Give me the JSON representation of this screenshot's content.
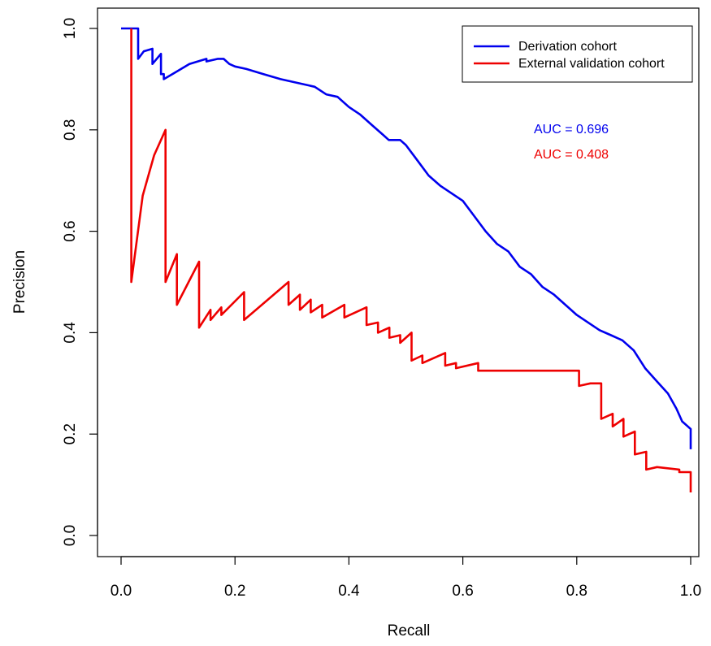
{
  "chart_data": {
    "type": "line",
    "xlabel": "Recall",
    "ylabel": "Precision",
    "xlim": [
      0,
      1
    ],
    "ylim": [
      0,
      1
    ],
    "x_ticks": [
      "0.0",
      "0.2",
      "0.4",
      "0.6",
      "0.8",
      "1.0"
    ],
    "y_ticks": [
      "0.0",
      "0.2",
      "0.4",
      "0.6",
      "0.8",
      "1.0"
    ],
    "grid": false,
    "legend": {
      "placement": "top-right",
      "entries": [
        "Derivation cohort",
        "External validation cohort"
      ]
    },
    "annotations": [
      {
        "text": "AUC = 0.696",
        "color": "#0000ee",
        "x": 0.73,
        "y": 0.8
      },
      {
        "text": "AUC = 0.408",
        "color": "#ee0000",
        "x": 0.73,
        "y": 0.75
      }
    ],
    "series": [
      {
        "name": "Derivation cohort",
        "color": "#0000ee",
        "points": [
          [
            0.0,
            1.0
          ],
          [
            0.03,
            1.0
          ],
          [
            0.03,
            0.94
          ],
          [
            0.04,
            0.955
          ],
          [
            0.055,
            0.96
          ],
          [
            0.055,
            0.93
          ],
          [
            0.07,
            0.95
          ],
          [
            0.07,
            0.91
          ],
          [
            0.075,
            0.91
          ],
          [
            0.075,
            0.9
          ],
          [
            0.09,
            0.91
          ],
          [
            0.12,
            0.93
          ],
          [
            0.15,
            0.94
          ],
          [
            0.15,
            0.935
          ],
          [
            0.17,
            0.94
          ],
          [
            0.18,
            0.94
          ],
          [
            0.19,
            0.93
          ],
          [
            0.2,
            0.925
          ],
          [
            0.22,
            0.92
          ],
          [
            0.25,
            0.91
          ],
          [
            0.28,
            0.9
          ],
          [
            0.3,
            0.895
          ],
          [
            0.32,
            0.89
          ],
          [
            0.34,
            0.885
          ],
          [
            0.36,
            0.87
          ],
          [
            0.38,
            0.865
          ],
          [
            0.4,
            0.845
          ],
          [
            0.42,
            0.83
          ],
          [
            0.44,
            0.81
          ],
          [
            0.46,
            0.79
          ],
          [
            0.47,
            0.78
          ],
          [
            0.49,
            0.78
          ],
          [
            0.5,
            0.77
          ],
          [
            0.52,
            0.74
          ],
          [
            0.54,
            0.71
          ],
          [
            0.56,
            0.69
          ],
          [
            0.58,
            0.675
          ],
          [
            0.6,
            0.66
          ],
          [
            0.62,
            0.63
          ],
          [
            0.64,
            0.6
          ],
          [
            0.66,
            0.575
          ],
          [
            0.68,
            0.56
          ],
          [
            0.7,
            0.53
          ],
          [
            0.72,
            0.515
          ],
          [
            0.74,
            0.49
          ],
          [
            0.76,
            0.475
          ],
          [
            0.78,
            0.455
          ],
          [
            0.8,
            0.435
          ],
          [
            0.82,
            0.42
          ],
          [
            0.84,
            0.405
          ],
          [
            0.86,
            0.395
          ],
          [
            0.88,
            0.385
          ],
          [
            0.9,
            0.365
          ],
          [
            0.92,
            0.33
          ],
          [
            0.94,
            0.305
          ],
          [
            0.96,
            0.28
          ],
          [
            0.975,
            0.25
          ],
          [
            0.985,
            0.225
          ],
          [
            0.995,
            0.215
          ],
          [
            1.0,
            0.21
          ],
          [
            1.0,
            0.17
          ]
        ]
      },
      {
        "name": "External validation cohort",
        "color": "#ee0000",
        "points": [
          [
            0.018,
            1.0
          ],
          [
            0.018,
            0.5
          ],
          [
            0.038,
            0.67
          ],
          [
            0.058,
            0.75
          ],
          [
            0.078,
            0.8
          ],
          [
            0.078,
            0.5
          ],
          [
            0.098,
            0.555
          ],
          [
            0.098,
            0.455
          ],
          [
            0.137,
            0.54
          ],
          [
            0.137,
            0.41
          ],
          [
            0.157,
            0.445
          ],
          [
            0.157,
            0.425
          ],
          [
            0.176,
            0.45
          ],
          [
            0.176,
            0.435
          ],
          [
            0.216,
            0.48
          ],
          [
            0.216,
            0.425
          ],
          [
            0.294,
            0.5
          ],
          [
            0.294,
            0.455
          ],
          [
            0.314,
            0.475
          ],
          [
            0.314,
            0.445
          ],
          [
            0.333,
            0.465
          ],
          [
            0.333,
            0.44
          ],
          [
            0.353,
            0.455
          ],
          [
            0.353,
            0.43
          ],
          [
            0.392,
            0.455
          ],
          [
            0.392,
            0.43
          ],
          [
            0.431,
            0.45
          ],
          [
            0.431,
            0.415
          ],
          [
            0.451,
            0.42
          ],
          [
            0.451,
            0.4
          ],
          [
            0.471,
            0.41
          ],
          [
            0.471,
            0.39
          ],
          [
            0.49,
            0.395
          ],
          [
            0.49,
            0.38
          ],
          [
            0.51,
            0.4
          ],
          [
            0.51,
            0.345
          ],
          [
            0.529,
            0.355
          ],
          [
            0.529,
            0.34
          ],
          [
            0.569,
            0.36
          ],
          [
            0.569,
            0.335
          ],
          [
            0.588,
            0.34
          ],
          [
            0.588,
            0.33
          ],
          [
            0.627,
            0.34
          ],
          [
            0.627,
            0.325
          ],
          [
            0.706,
            0.325
          ],
          [
            0.804,
            0.325
          ],
          [
            0.804,
            0.295
          ],
          [
            0.824,
            0.3
          ],
          [
            0.843,
            0.3
          ],
          [
            0.843,
            0.23
          ],
          [
            0.863,
            0.24
          ],
          [
            0.863,
            0.215
          ],
          [
            0.882,
            0.23
          ],
          [
            0.882,
            0.195
          ],
          [
            0.902,
            0.205
          ],
          [
            0.902,
            0.16
          ],
          [
            0.922,
            0.165
          ],
          [
            0.922,
            0.13
          ],
          [
            0.941,
            0.135
          ],
          [
            0.98,
            0.13
          ],
          [
            0.98,
            0.125
          ],
          [
            1.0,
            0.125
          ],
          [
            1.0,
            0.085
          ]
        ]
      }
    ]
  }
}
